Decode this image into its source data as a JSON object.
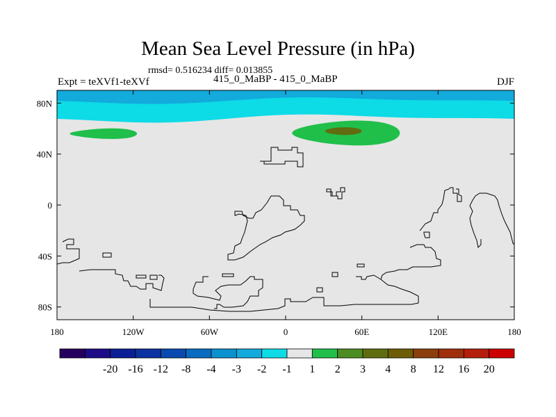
{
  "chart_data": {
    "type": "heatmap",
    "title": "Mean Sea Level Pressure (in hPa)",
    "stats_text": "rmsd= 0.516234 diff= 0.013855",
    "experiment_label": "Expt = teXVf1-teXVf",
    "subtitle": "415_0_MaBP - 415_0_MaBP",
    "season": "DJF",
    "x_range": [
      -180,
      180
    ],
    "y_range": [
      -90,
      90
    ],
    "x_ticks": [
      {
        "value": -180,
        "label": "180"
      },
      {
        "value": -120,
        "label": "120W"
      },
      {
        "value": -60,
        "label": "60W"
      },
      {
        "value": 0,
        "label": "0"
      },
      {
        "value": 60,
        "label": "60E"
      },
      {
        "value": 120,
        "label": "120E"
      },
      {
        "value": 180,
        "label": "180"
      }
    ],
    "y_ticks": [
      {
        "value": 80,
        "label": "80N"
      },
      {
        "value": 40,
        "label": "40N"
      },
      {
        "value": 0,
        "label": "0"
      },
      {
        "value": -40,
        "label": "40S"
      },
      {
        "value": -80,
        "label": "80S"
      }
    ],
    "background_value_range": [
      -1,
      1
    ],
    "features": [
      {
        "name": "polar band",
        "class": "-3 to -2",
        "lat_range": [
          82,
          90
        ],
        "lon_range": [
          -180,
          180
        ]
      },
      {
        "name": "polar band",
        "class": "-2 to -1",
        "lat_range": [
          68,
          82
        ],
        "lon_range": [
          -180,
          180
        ]
      },
      {
        "name": "north pacific anomaly",
        "class": "1 to 2",
        "lat_range": [
          52,
          60
        ],
        "lon_range": [
          -170,
          -117
        ]
      },
      {
        "name": "eurasian anomaly",
        "class": "1 to 2",
        "lat_range": [
          47,
          66
        ],
        "lon_range": [
          5,
          90
        ]
      },
      {
        "name": "eurasian anomaly core",
        "class": "2 to 3",
        "lat_range": [
          55,
          61
        ],
        "lon_range": [
          31,
          60
        ]
      }
    ],
    "colorbar": {
      "labels": [
        "-20",
        "-16",
        "-12",
        "-8",
        "-4",
        "-3",
        "-2",
        "-1",
        "1",
        "2",
        "3",
        "4",
        "8",
        "12",
        "16",
        "20"
      ],
      "colors": [
        "#26005e",
        "#1c0c88",
        "#0c1f96",
        "#0a32a0",
        "#0a49af",
        "#0a6bc2",
        "#0a91cf",
        "#13aadc",
        "#0ddbe6",
        "#e6e6e6",
        "#20bf4a",
        "#4c8c23",
        "#5f6d10",
        "#6e5d07",
        "#8c3f0c",
        "#a0300c",
        "#b41f0c",
        "#cc0000"
      ]
    },
    "colors": {
      "band_outer": "#13aadc",
      "band_inner": "#0ddbe6",
      "background": "#e6e6e6",
      "positive_light": "#20bf4a",
      "positive_core": "#5f6d10",
      "coastline": "#000000"
    }
  }
}
